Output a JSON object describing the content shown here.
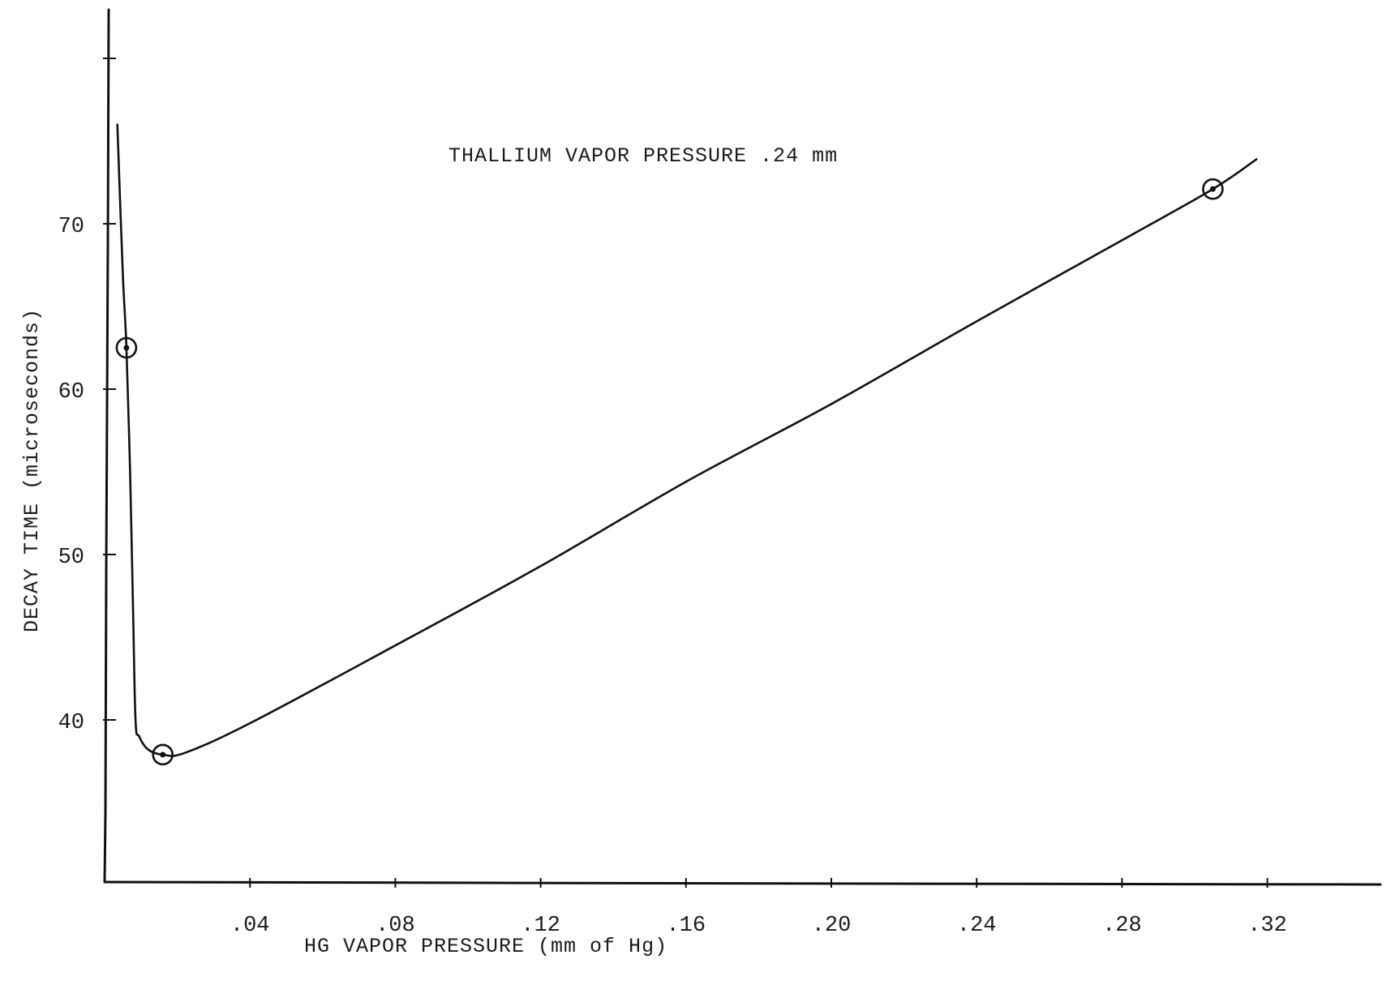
{
  "chart_data": {
    "type": "line",
    "title": "",
    "xlabel": "HG VAPOR PRESSURE (mm of Hg)",
    "ylabel": "DECAY TIME  (microseconds)",
    "annotation": "THALLIUM VAPOR PRESSURE  .24 mm",
    "xlim": [
      0,
      0.32
    ],
    "ylim": [
      30,
      80
    ],
    "x_ticks": [
      {
        "value": 0.04,
        "label": ".04"
      },
      {
        "value": 0.08,
        "label": ".08"
      },
      {
        "value": 0.12,
        "label": ".12"
      },
      {
        "value": 0.16,
        "label": ".16"
      },
      {
        "value": 0.2,
        "label": ".20"
      },
      {
        "value": 0.24,
        "label": ".24"
      },
      {
        "value": 0.28,
        "label": ".28"
      },
      {
        "value": 0.32,
        "label": ".32"
      }
    ],
    "y_ticks": [
      {
        "value": 40,
        "label": "40"
      },
      {
        "value": 50,
        "label": "50"
      },
      {
        "value": 60,
        "label": "60"
      },
      {
        "value": 70,
        "label": "70"
      },
      {
        "value": 80,
        "label": ""
      }
    ],
    "grid": false,
    "series": [
      {
        "points": [
          {
            "x": 0.006,
            "y": 62.5
          },
          {
            "x": 0.016,
            "y": 37.9
          },
          {
            "x": 0.305,
            "y": 72.1
          }
        ],
        "curve": [
          {
            "x": 0.0035,
            "y": 76
          },
          {
            "x": 0.005,
            "y": 67
          },
          {
            "x": 0.006,
            "y": 62.5
          },
          {
            "x": 0.007,
            "y": 55
          },
          {
            "x": 0.0078,
            "y": 47
          },
          {
            "x": 0.0085,
            "y": 40
          },
          {
            "x": 0.0095,
            "y": 39
          },
          {
            "x": 0.012,
            "y": 38.2
          },
          {
            "x": 0.016,
            "y": 37.9
          },
          {
            "x": 0.022,
            "y": 38
          },
          {
            "x": 0.04,
            "y": 39.8
          },
          {
            "x": 0.08,
            "y": 44.5
          },
          {
            "x": 0.12,
            "y": 49.3
          },
          {
            "x": 0.16,
            "y": 54.4
          },
          {
            "x": 0.2,
            "y": 59.1
          },
          {
            "x": 0.24,
            "y": 64.1
          },
          {
            "x": 0.28,
            "y": 69
          },
          {
            "x": 0.305,
            "y": 72.1
          },
          {
            "x": 0.317,
            "y": 73.9
          }
        ]
      }
    ],
    "colors": {
      "ink": "#111111",
      "background": "#ffffff"
    }
  }
}
